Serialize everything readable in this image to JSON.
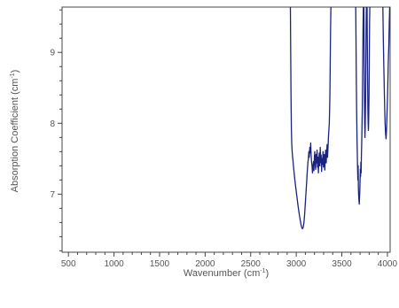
{
  "chart_data": {
    "type": "line",
    "title": "",
    "xlabel": "Wavenumber (cm",
    "xlabel_sup": "-1",
    "xlabel_tail": ")",
    "ylabel": "Absorption Coefficient (cm",
    "ylabel_sup": "-1",
    "ylabel_tail": ")",
    "xlim": [
      430,
      4030
    ],
    "ylim": [
      6.18,
      9.64
    ],
    "x_ticks": [
      500,
      1000,
      1500,
      2000,
      2500,
      3000,
      3500,
      4000
    ],
    "x_tick_labels": [
      "500",
      "1000",
      "1500",
      "2000",
      "2500",
      "3000",
      "3500",
      "4000"
    ],
    "y_ticks": [
      7,
      8,
      9
    ],
    "y_tick_labels": [
      "7",
      "8",
      "9"
    ],
    "grid": false,
    "line_color": "#1a237e",
    "series": [
      {
        "segments": [
          [
            [
              2935,
              9.64
            ],
            [
              2938,
              9.1
            ],
            [
              2942,
              8.4
            ],
            [
              2946,
              7.95
            ],
            [
              2950,
              7.72
            ],
            [
              2955,
              7.6
            ],
            [
              2962,
              7.5
            ],
            [
              2970,
              7.38
            ],
            [
              2980,
              7.25
            ],
            [
              2992,
              7.12
            ],
            [
              3005,
              6.98
            ],
            [
              3018,
              6.85
            ],
            [
              3030,
              6.74
            ],
            [
              3042,
              6.64
            ],
            [
              3052,
              6.57
            ],
            [
              3060,
              6.53
            ],
            [
              3068,
              6.51
            ],
            [
              3076,
              6.53
            ],
            [
              3084,
              6.6
            ],
            [
              3092,
              6.72
            ],
            [
              3100,
              6.88
            ],
            [
              3108,
              7.04
            ],
            [
              3115,
              7.2
            ],
            [
              3122,
              7.35
            ],
            [
              3128,
              7.45
            ],
            [
              3133,
              7.5
            ],
            [
              3138,
              7.6
            ],
            [
              3143,
              7.52
            ],
            [
              3148,
              7.66
            ],
            [
              3153,
              7.58
            ],
            [
              3158,
              7.72
            ],
            [
              3163,
              7.55
            ],
            [
              3168,
              7.45
            ],
            [
              3173,
              7.4
            ],
            [
              3178,
              7.3
            ],
            [
              3183,
              7.38
            ],
            [
              3188,
              7.46
            ],
            [
              3193,
              7.33
            ],
            [
              3198,
              7.5
            ],
            [
              3203,
              7.6
            ],
            [
              3208,
              7.42
            ],
            [
              3213,
              7.35
            ],
            [
              3218,
              7.56
            ],
            [
              3223,
              7.44
            ],
            [
              3228,
              7.62
            ],
            [
              3233,
              7.38
            ],
            [
              3238,
              7.52
            ],
            [
              3243,
              7.3
            ],
            [
              3248,
              7.48
            ],
            [
              3253,
              7.58
            ],
            [
              3258,
              7.4
            ],
            [
              3263,
              7.66
            ],
            [
              3268,
              7.45
            ],
            [
              3273,
              7.55
            ],
            [
              3278,
              7.32
            ],
            [
              3283,
              7.5
            ],
            [
              3288,
              7.42
            ],
            [
              3293,
              7.6
            ],
            [
              3298,
              7.38
            ],
            [
              3303,
              7.48
            ],
            [
              3308,
              7.56
            ],
            [
              3313,
              7.34
            ],
            [
              3318,
              7.52
            ],
            [
              3323,
              7.62
            ],
            [
              3328,
              7.44
            ],
            [
              3333,
              7.58
            ],
            [
              3338,
              7.7
            ],
            [
              3343,
              7.52
            ],
            [
              3348,
              7.65
            ],
            [
              3353,
              7.8
            ],
            [
              3358,
              7.9
            ],
            [
              3363,
              8.0
            ],
            [
              3368,
              8.35
            ],
            [
              3372,
              8.8
            ],
            [
              3376,
              9.3
            ],
            [
              3380,
              9.64
            ]
          ],
          [
            [
              3652,
              9.64
            ],
            [
              3655,
              9.2
            ],
            [
              3658,
              8.7
            ],
            [
              3661,
              8.3
            ],
            [
              3664,
              8.0
            ],
            [
              3667,
              7.75
            ],
            [
              3670,
              7.55
            ],
            [
              3673,
              7.35
            ],
            [
              3676,
              7.2
            ],
            [
              3679,
              7.4
            ],
            [
              3682,
              7.1
            ],
            [
              3685,
              6.98
            ],
            [
              3688,
              6.9
            ],
            [
              3691,
              6.86
            ],
            [
              3694,
              6.95
            ],
            [
              3697,
              7.05
            ],
            [
              3700,
              7.2
            ],
            [
              3703,
              7.35
            ],
            [
              3706,
              7.25
            ],
            [
              3709,
              7.45
            ],
            [
              3712,
              7.3
            ],
            [
              3715,
              7.55
            ],
            [
              3718,
              7.7
            ],
            [
              3721,
              7.9
            ],
            [
              3724,
              8.2
            ],
            [
              3727,
              8.6
            ],
            [
              3730,
              9.0
            ],
            [
              3733,
              9.4
            ],
            [
              3736,
              9.64
            ]
          ],
          [
            [
              3742,
              9.64
            ],
            [
              3745,
              9.0
            ],
            [
              3748,
              8.4
            ],
            [
              3751,
              8.0
            ],
            [
              3754,
              7.8
            ],
            [
              3757,
              7.95
            ],
            [
              3760,
              8.3
            ],
            [
              3763,
              8.8
            ],
            [
              3766,
              9.3
            ],
            [
              3769,
              9.64
            ]
          ],
          [
            [
              3777,
              9.64
            ],
            [
              3780,
              9.1
            ],
            [
              3783,
              8.6
            ],
            [
              3786,
              8.2
            ],
            [
              3789,
              8.0
            ],
            [
              3792,
              7.9
            ],
            [
              3795,
              8.05
            ],
            [
              3798,
              8.4
            ],
            [
              3801,
              8.9
            ],
            [
              3804,
              9.4
            ],
            [
              3807,
              9.64
            ]
          ],
          [
            [
              3950,
              9.64
            ],
            [
              3955,
              9.2
            ],
            [
              3960,
              8.85
            ],
            [
              3965,
              8.55
            ],
            [
              3970,
              8.25
            ],
            [
              3975,
              8.0
            ],
            [
              3980,
              7.85
            ],
            [
              3985,
              7.78
            ],
            [
              3990,
              7.9
            ],
            [
              3995,
              8.1
            ],
            [
              4000,
              8.3
            ],
            [
              4005,
              8.55
            ],
            [
              4010,
              8.85
            ],
            [
              4015,
              9.1
            ],
            [
              4020,
              9.4
            ],
            [
              4025,
              9.64
            ]
          ]
        ]
      }
    ]
  }
}
